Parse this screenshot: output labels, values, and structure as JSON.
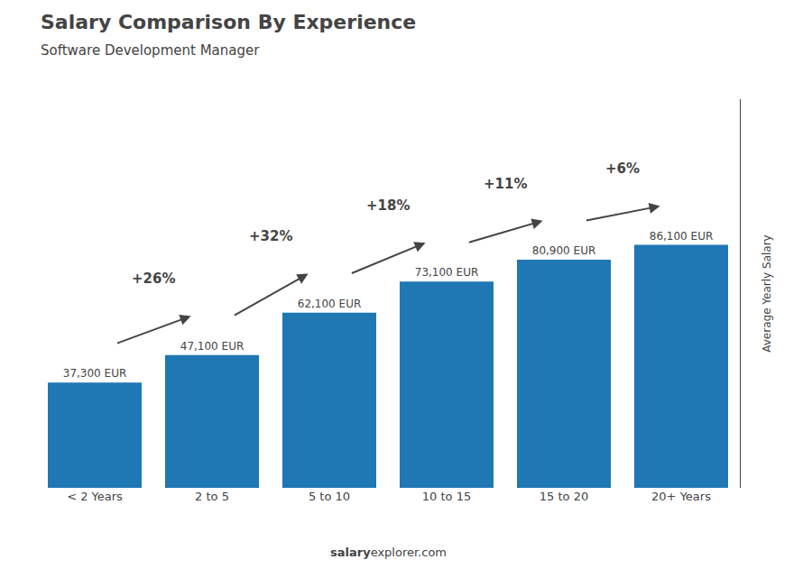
{
  "chart_data": {
    "type": "bar",
    "title": "Salary Comparison By Experience",
    "subtitle": "Software Development Manager",
    "categories": [
      "< 2 Years",
      "2 to 5",
      "5 to 10",
      "10 to 15",
      "15 to 20",
      "20+ Years"
    ],
    "values": [
      37300,
      47100,
      62100,
      73100,
      80900,
      86100
    ],
    "value_labels": [
      "37,300 EUR",
      "47,100 EUR",
      "62,100 EUR",
      "73,100 EUR",
      "80,900 EUR",
      "86,100 EUR"
    ],
    "data_labels": true,
    "annotations": [
      "+26%",
      "+32%",
      "+18%",
      "+11%",
      "+6%"
    ],
    "ylabel": "Average Yearly Salary",
    "source": [
      "salary",
      "explorer.com"
    ],
    "ylim": [
      0,
      137750
    ],
    "grid": false,
    "tick_labels": "x"
  }
}
